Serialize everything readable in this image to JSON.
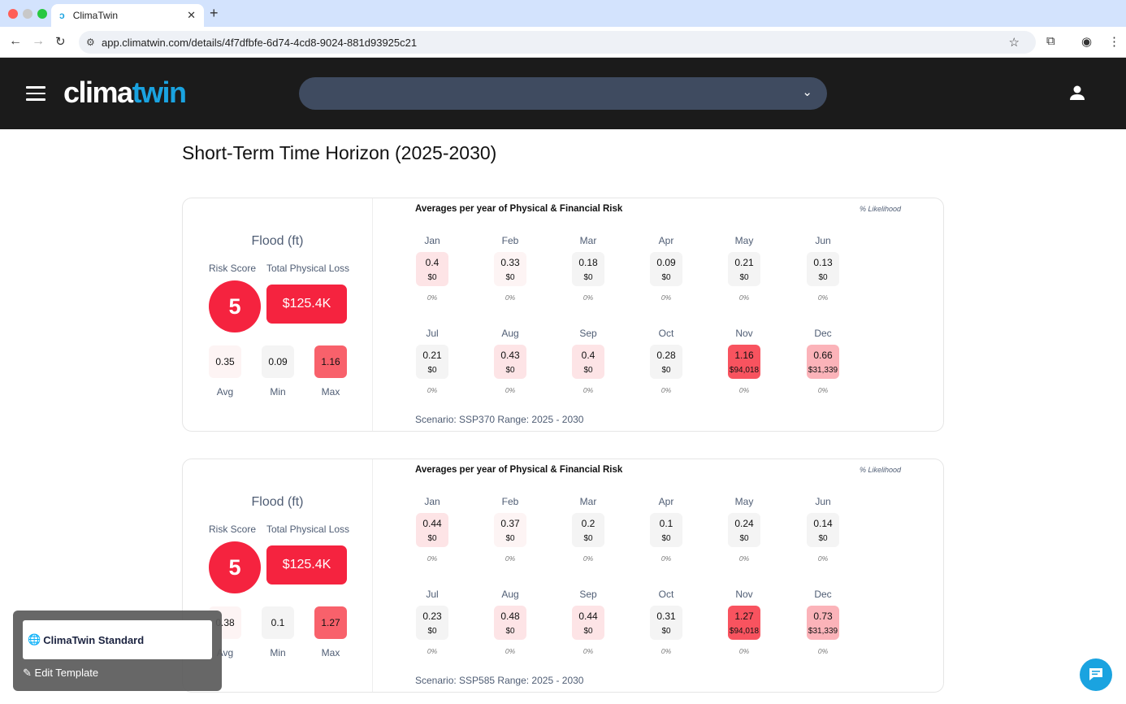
{
  "browser": {
    "tab_title": "ClimaTwin",
    "url": "app.climatwin.com/details/4f7dfbfe-6d74-4cd8-9024-881d93925c21"
  },
  "header": {
    "logo_part1": "clima",
    "logo_part2": "twin",
    "selector_value": ""
  },
  "page_title": "Short-Term Time Horizon (2025-2030)",
  "colors": {
    "accent": "#f5233f",
    "brand": "#1aa3e0",
    "gray": "#f4f4f4",
    "faint": "#fdf4f4",
    "light": "#fde4e6",
    "mid": "#fbb3b9",
    "strong": "#f8535f"
  },
  "labels": {
    "risk_score": "Risk Score",
    "total_loss": "Total Physical Loss",
    "avg": "Avg",
    "min": "Min",
    "max": "Max",
    "chart_title": "Averages per year of Physical & Financial Risk",
    "likelihood": "% Likelihood"
  },
  "cards": [
    {
      "hazard": "Flood (ft)",
      "risk_score": "5",
      "total_loss": "$125.4K",
      "avg": {
        "value": "0.35",
        "color": "#fdf4f4"
      },
      "min": {
        "value": "0.09",
        "color": "#f4f4f4"
      },
      "max": {
        "value": "1.16",
        "color": "#f8616b"
      },
      "scenario": "Scenario: SSP370 Range: 2025 - 2030",
      "months": [
        {
          "name": "Jan",
          "value": "0.4",
          "loss": "$0",
          "likelihood": "0%",
          "color": "#fde4e6"
        },
        {
          "name": "Feb",
          "value": "0.33",
          "loss": "$0",
          "likelihood": "0%",
          "color": "#fdf4f4"
        },
        {
          "name": "Mar",
          "value": "0.18",
          "loss": "$0",
          "likelihood": "0%",
          "color": "#f4f4f4"
        },
        {
          "name": "Apr",
          "value": "0.09",
          "loss": "$0",
          "likelihood": "0%",
          "color": "#f4f4f4"
        },
        {
          "name": "May",
          "value": "0.21",
          "loss": "$0",
          "likelihood": "0%",
          "color": "#f4f4f4"
        },
        {
          "name": "Jun",
          "value": "0.13",
          "loss": "$0",
          "likelihood": "0%",
          "color": "#f4f4f4"
        },
        {
          "name": "Jul",
          "value": "0.21",
          "loss": "$0",
          "likelihood": "0%",
          "color": "#f4f4f4"
        },
        {
          "name": "Aug",
          "value": "0.43",
          "loss": "$0",
          "likelihood": "0%",
          "color": "#fde4e6"
        },
        {
          "name": "Sep",
          "value": "0.4",
          "loss": "$0",
          "likelihood": "0%",
          "color": "#fde4e6"
        },
        {
          "name": "Oct",
          "value": "0.28",
          "loss": "$0",
          "likelihood": "0%",
          "color": "#f4f4f4"
        },
        {
          "name": "Nov",
          "value": "1.16",
          "loss": "$94,018",
          "likelihood": "0%",
          "color": "#f8535f"
        },
        {
          "name": "Dec",
          "value": "0.66",
          "loss": "$31,339",
          "likelihood": "0%",
          "color": "#fbb3b9"
        }
      ]
    },
    {
      "hazard": "Flood (ft)",
      "risk_score": "5",
      "total_loss": "$125.4K",
      "avg": {
        "value": "0.38",
        "color": "#fdf4f4"
      },
      "min": {
        "value": "0.1",
        "color": "#f4f4f4"
      },
      "max": {
        "value": "1.27",
        "color": "#f8616b"
      },
      "scenario": "Scenario: SSP585 Range: 2025 - 2030",
      "months": [
        {
          "name": "Jan",
          "value": "0.44",
          "loss": "$0",
          "likelihood": "0%",
          "color": "#fde4e6"
        },
        {
          "name": "Feb",
          "value": "0.37",
          "loss": "$0",
          "likelihood": "0%",
          "color": "#fdf4f4"
        },
        {
          "name": "Mar",
          "value": "0.2",
          "loss": "$0",
          "likelihood": "0%",
          "color": "#f4f4f4"
        },
        {
          "name": "Apr",
          "value": "0.1",
          "loss": "$0",
          "likelihood": "0%",
          "color": "#f4f4f4"
        },
        {
          "name": "May",
          "value": "0.24",
          "loss": "$0",
          "likelihood": "0%",
          "color": "#f4f4f4"
        },
        {
          "name": "Jun",
          "value": "0.14",
          "loss": "$0",
          "likelihood": "0%",
          "color": "#f4f4f4"
        },
        {
          "name": "Jul",
          "value": "0.23",
          "loss": "$0",
          "likelihood": "0%",
          "color": "#f4f4f4"
        },
        {
          "name": "Aug",
          "value": "0.48",
          "loss": "$0",
          "likelihood": "0%",
          "color": "#fde4e6"
        },
        {
          "name": "Sep",
          "value": "0.44",
          "loss": "$0",
          "likelihood": "0%",
          "color": "#fde4e6"
        },
        {
          "name": "Oct",
          "value": "0.31",
          "loss": "$0",
          "likelihood": "0%",
          "color": "#f4f4f4"
        },
        {
          "name": "Nov",
          "value": "1.27",
          "loss": "$94,018",
          "likelihood": "0%",
          "color": "#f8535f"
        },
        {
          "name": "Dec",
          "value": "0.73",
          "loss": "$31,339",
          "likelihood": "0%",
          "color": "#fbb3b9"
        }
      ]
    }
  ],
  "template": {
    "name": "ClimaTwin Standard",
    "edit_label": "Edit Template"
  }
}
